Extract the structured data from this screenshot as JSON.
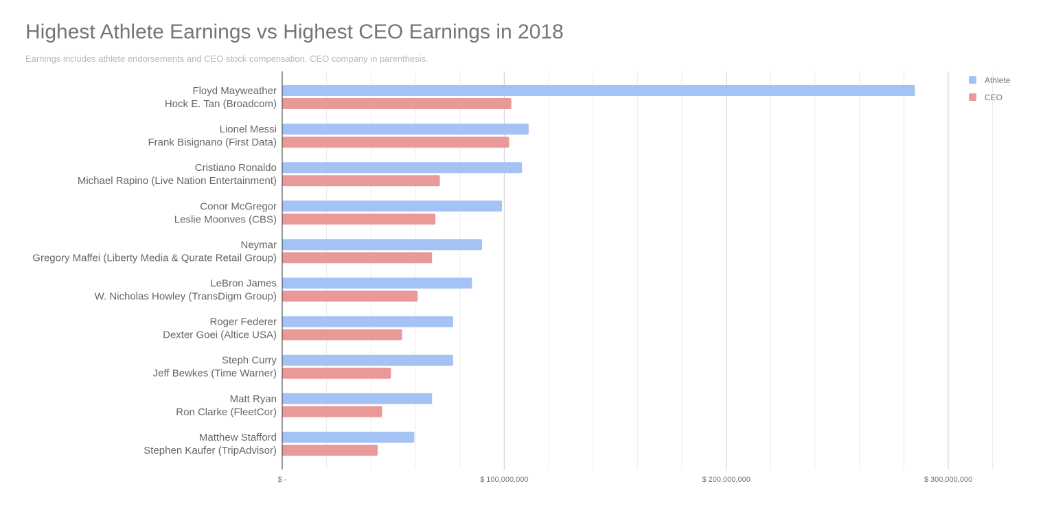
{
  "chart_data": {
    "type": "bar",
    "orientation": "horizontal",
    "title": "Highest Athlete Earnings vs Highest CEO Earnings in 2018",
    "subtitle": "Earnings includes athlete endorsements and CEO stock compensation. CEO company in parenthesis.",
    "xlabel": "",
    "ylabel": "",
    "xlim": [
      0,
      330000000
    ],
    "x_ticks": [
      0,
      100000000,
      200000000,
      300000000
    ],
    "x_tick_labels": [
      "$ -",
      "$ 100,000,000",
      "$ 200,000,000",
      "$ 300,000,000"
    ],
    "grid": true,
    "legend_position": "top-right",
    "groups": [
      {
        "athlete": "Floyd Mayweather",
        "ceo": "Hock E. Tan (Broadcom)"
      },
      {
        "athlete": "Lionel Messi",
        "ceo": "Frank Bisignano (First Data)"
      },
      {
        "athlete": "Cristiano Ronaldo",
        "ceo": "Michael Rapino (Live Nation Entertainment)"
      },
      {
        "athlete": "Conor McGregor",
        "ceo": "Leslie Moonves (CBS)"
      },
      {
        "athlete": "Neymar",
        "ceo": "Gregory Maffei (Liberty Media & Qurate Retail Group)"
      },
      {
        "athlete": "LeBron James",
        "ceo": "W. Nicholas Howley (TransDigm Group)"
      },
      {
        "athlete": "Roger Federer",
        "ceo": "Dexter Goei (Altice USA)"
      },
      {
        "athlete": "Steph Curry",
        "ceo": "Jeff Bewkes (Time Warner)"
      },
      {
        "athlete": "Matt Ryan",
        "ceo": "Ron Clarke (FleetCor)"
      },
      {
        "athlete": "Matthew Stafford",
        "ceo": "Stephen Kaufer (TripAdvisor)"
      }
    ],
    "series": [
      {
        "name": "Athlete",
        "color": "#a4c2f4",
        "values": [
          285000000,
          111000000,
          108000000,
          99000000,
          90000000,
          85500000,
          77000000,
          77000000,
          67500000,
          59500000
        ]
      },
      {
        "name": "CEO",
        "color": "#ea9999",
        "values": [
          103200000,
          102200000,
          71000000,
          69000000,
          67500000,
          61000000,
          54000000,
          49000000,
          45000000,
          43000000
        ]
      }
    ]
  }
}
